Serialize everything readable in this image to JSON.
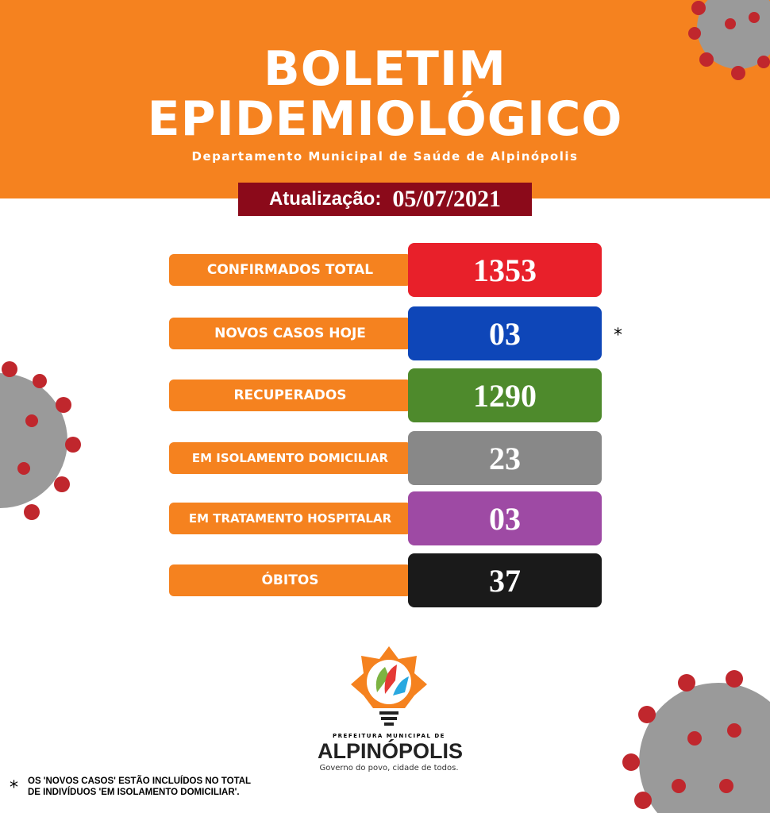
{
  "header": {
    "title_line1": "BOLETIM",
    "title_line2": "EPIDEMIOLÓGICO",
    "subtitle": "Departamento Municipal de Saúde de Alpinópolis"
  },
  "update": {
    "label": "Atualização:",
    "date": "05/07/2021"
  },
  "stats": [
    {
      "label": "CONFIRMADOS TOTAL",
      "value": "1353",
      "color": "#e8202a"
    },
    {
      "label": "NOVOS CASOS HOJE",
      "value": "03",
      "color": "#0e46b8",
      "footnote_marker": "*"
    },
    {
      "label": "RECUPERADOS",
      "value": "1290",
      "color": "#4e8a2c"
    },
    {
      "label": "EM ISOLAMENTO DOMICILIAR",
      "value": "23",
      "color": "#888888"
    },
    {
      "label": "EM TRATAMENTO HOSPITALAR",
      "value": "03",
      "color": "#9e4aa4"
    },
    {
      "label": "ÓBITOS",
      "value": "37",
      "color": "#1a1a1a"
    }
  ],
  "footnote": {
    "marker": "*",
    "line1": "OS 'NOVOS CASOS' ESTÃO INCLUÍDOS NO TOTAL",
    "line2": "DE  INDIVÍDUOS  'EM ISOLAMENTO DOMICILIAR'."
  },
  "logo": {
    "line1": "PREFEITURA MUNICIPAL DE",
    "line2": "ALPINÓPOLIS",
    "tagline": "Governo do povo, cidade de todos."
  },
  "colors": {
    "orange": "#f5821f",
    "date_bg": "#8b0a1a"
  }
}
